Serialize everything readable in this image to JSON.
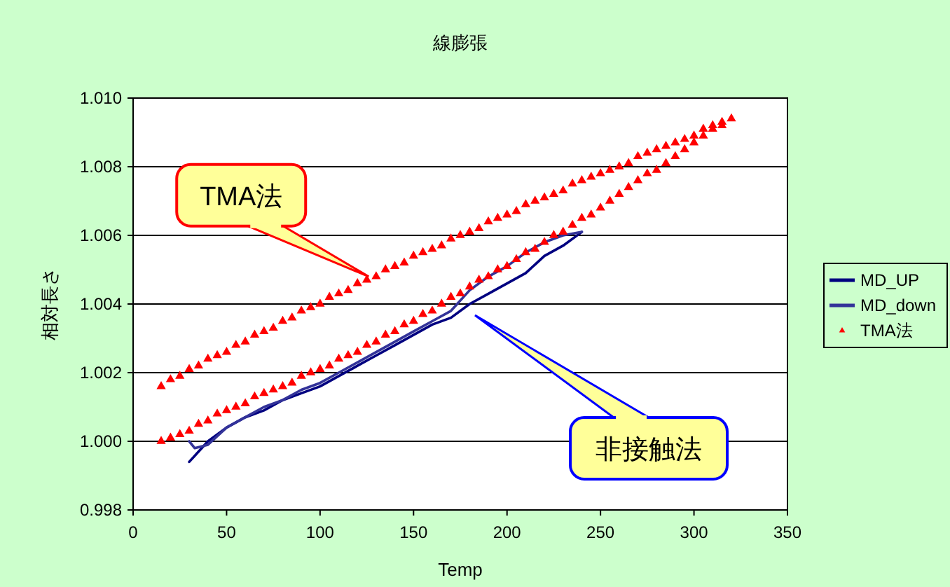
{
  "chart_data": {
    "type": "line",
    "title": "線膨張",
    "xlabel": "Temp",
    "ylabel": "相対長さ",
    "xlim": [
      0,
      350
    ],
    "xticks": [
      0,
      50,
      100,
      150,
      200,
      250,
      300,
      350
    ],
    "ylim": [
      0.998,
      1.01
    ],
    "yticks": [
      {
        "value": 0.998,
        "label": "0.998"
      },
      {
        "value": 1.0,
        "label": "1.000"
      },
      {
        "value": 1.002,
        "label": "1.002"
      },
      {
        "value": 1.004,
        "label": "1.004"
      },
      {
        "value": 1.006,
        "label": "1.006"
      },
      {
        "value": 1.008,
        "label": "1.008"
      },
      {
        "value": 1.01,
        "label": "1.010"
      }
    ],
    "grid": "y",
    "legend": "right",
    "series": [
      {
        "name": "MD_UP",
        "color": "#000080",
        "x": [
          30,
          35,
          40,
          50,
          60,
          70,
          80,
          90,
          100,
          110,
          120,
          130,
          140,
          150,
          160,
          170,
          180,
          190,
          200,
          210,
          220,
          230,
          240
        ],
        "values": [
          0.9994,
          0.9997,
          1.0,
          1.0004,
          1.0007,
          1.0009,
          1.0012,
          1.0014,
          1.0016,
          1.0019,
          1.0022,
          1.0025,
          1.0028,
          1.0031,
          1.0034,
          1.0036,
          1.004,
          1.0043,
          1.0046,
          1.0049,
          1.0054,
          1.0057,
          1.0061
        ]
      },
      {
        "name": "MD_down",
        "color": "#333399",
        "x": [
          30,
          33,
          40,
          50,
          60,
          70,
          80,
          90,
          100,
          110,
          120,
          130,
          140,
          150,
          160,
          170,
          180,
          190,
          200,
          210,
          220,
          230,
          240
        ],
        "values": [
          1.0,
          0.9998,
          0.9999,
          1.0004,
          1.0007,
          1.001,
          1.0012,
          1.0015,
          1.0017,
          1.002,
          1.0023,
          1.0026,
          1.0029,
          1.0032,
          1.0035,
          1.0038,
          1.0044,
          1.0048,
          1.0051,
          1.0055,
          1.0058,
          1.006,
          1.0061
        ]
      },
      {
        "name": "TMA法",
        "color": "#ff0000",
        "type": "scatter",
        "marker": "triangle",
        "x": [
          15,
          20,
          25,
          30,
          35,
          40,
          45,
          50,
          55,
          60,
          65,
          70,
          75,
          80,
          85,
          90,
          95,
          100,
          105,
          110,
          115,
          120,
          125,
          130,
          135,
          140,
          145,
          150,
          155,
          160,
          165,
          170,
          175,
          180,
          185,
          190,
          195,
          200,
          205,
          210,
          215,
          220,
          225,
          230,
          235,
          240,
          245,
          250,
          255,
          260,
          265,
          270,
          275,
          280,
          285,
          290,
          295,
          300,
          305,
          310,
          315,
          320,
          315,
          310,
          305,
          300,
          295,
          290,
          285,
          280,
          275,
          270,
          265,
          260,
          255,
          250,
          245,
          240,
          235,
          230,
          225,
          220,
          215,
          210,
          205,
          200,
          195,
          190,
          185,
          180,
          175,
          170,
          165,
          160,
          155,
          150,
          145,
          140,
          135,
          130,
          125,
          120,
          115,
          110,
          105,
          100,
          95,
          90,
          85,
          80,
          75,
          70,
          65,
          60,
          55,
          50,
          45,
          40,
          35,
          30,
          25,
          20,
          15
        ],
        "values": [
          1.0016,
          1.0018,
          1.0019,
          1.0021,
          1.0022,
          1.0024,
          1.0025,
          1.0026,
          1.0028,
          1.0029,
          1.0031,
          1.0032,
          1.0033,
          1.0035,
          1.0036,
          1.0038,
          1.0039,
          1.004,
          1.0042,
          1.0043,
          1.0044,
          1.0046,
          1.0047,
          1.0048,
          1.005,
          1.0051,
          1.0052,
          1.0054,
          1.0055,
          1.0056,
          1.0057,
          1.0059,
          1.006,
          1.0061,
          1.0062,
          1.0064,
          1.0065,
          1.0066,
          1.0067,
          1.0069,
          1.007,
          1.0071,
          1.0072,
          1.0073,
          1.0075,
          1.0076,
          1.0077,
          1.0078,
          1.0079,
          1.008,
          1.0081,
          1.0083,
          1.0084,
          1.0085,
          1.0086,
          1.0087,
          1.0088,
          1.0089,
          1.0091,
          1.0092,
          1.0093,
          1.0094,
          1.0092,
          1.0091,
          1.0089,
          1.0087,
          1.0085,
          1.0083,
          1.0081,
          1.0079,
          1.0078,
          1.0076,
          1.0074,
          1.0072,
          1.007,
          1.0068,
          1.0066,
          1.0065,
          1.0063,
          1.0061,
          1.006,
          1.0058,
          1.0056,
          1.0055,
          1.0053,
          1.0051,
          1.005,
          1.0048,
          1.0047,
          1.0045,
          1.0043,
          1.0042,
          1.004,
          1.0038,
          1.0037,
          1.0035,
          1.0034,
          1.0032,
          1.0031,
          1.0029,
          1.0028,
          1.0026,
          1.0025,
          1.0024,
          1.0022,
          1.0021,
          1.002,
          1.0019,
          1.0017,
          1.0016,
          1.0015,
          1.0014,
          1.0013,
          1.0011,
          1.001,
          1.0009,
          1.0008,
          1.0006,
          1.0005,
          1.0003,
          1.0002,
          1.0001,
          1.0
        ]
      }
    ],
    "annotations": [
      {
        "text": "TMA法",
        "x": 126,
        "y": 1.0048
      },
      "非接触法"
    ]
  }
}
